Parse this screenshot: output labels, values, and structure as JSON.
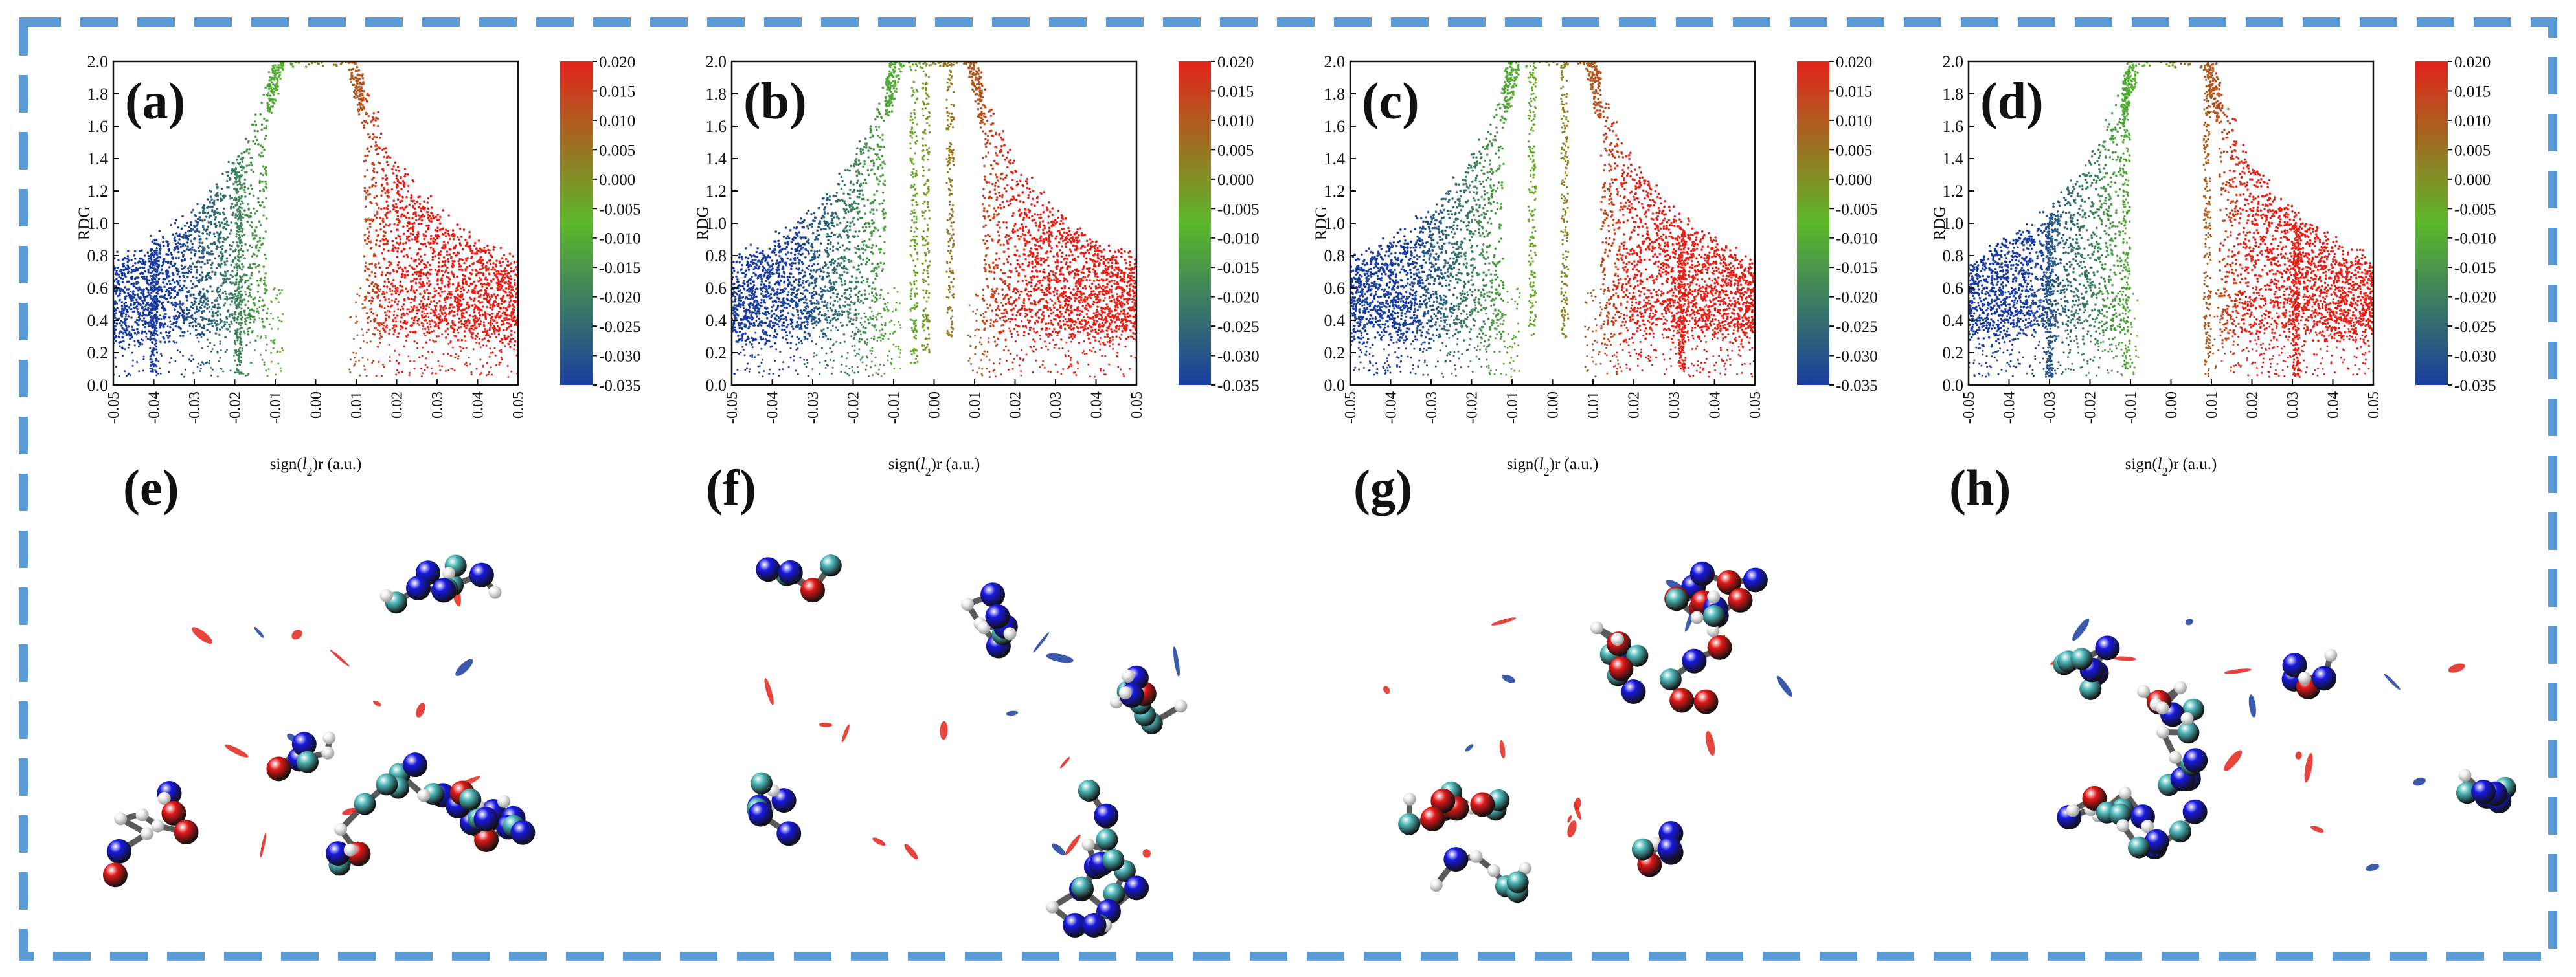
{
  "colors": {
    "border": "#5b9bd5",
    "nci_blue": "#1a3d9e",
    "nci_green": "#5cb82a",
    "nci_red": "#e2231a",
    "atom_c": "#4fb8b8",
    "atom_n": "#1818e0",
    "atom_o": "#e01818",
    "atom_h": "#f2f2f2"
  },
  "panels_3d": [
    {
      "label": "(e)",
      "icon": "molecule-nci-isosurface"
    },
    {
      "label": "(f)",
      "icon": "molecule-nci-isosurface"
    },
    {
      "label": "(g)",
      "icon": "molecule-nci-isosurface"
    },
    {
      "label": "(h)",
      "icon": "molecule-nci-isosurface"
    }
  ],
  "chart_data": [
    {
      "type": "scatter",
      "panel_label": "(a)",
      "xlabel": "sign(l2)r (a.u.)",
      "xlabel_prefix": "sign(",
      "xlabel_l": "l",
      "xlabel_sub": "2",
      "xlabel_suffix": ")r (a.u.)",
      "ylabel": "RDG",
      "xlim": [
        -0.05,
        0.05
      ],
      "ylim": [
        0.0,
        2.0
      ],
      "xticks": [
        "-0.05",
        "-0.04",
        "-0.03",
        "-0.02",
        "-0.01",
        "0.00",
        "0.01",
        "0.02",
        "0.03",
        "0.04",
        "0.05"
      ],
      "yticks": [
        "0.0",
        "0.2",
        "0.4",
        "0.6",
        "0.8",
        "1.0",
        "1.2",
        "1.4",
        "1.6",
        "1.8",
        "2.0"
      ],
      "colorbar_range": [
        -0.035,
        0.02
      ],
      "colorbar_ticks": [
        "0.020",
        "0.015",
        "0.010",
        "0.005",
        "0.000",
        "-0.005",
        "-0.010",
        "-0.015",
        "-0.020",
        "-0.025",
        "-0.030",
        "-0.035"
      ],
      "spikes": [
        {
          "x": -0.019,
          "min_rdg": 0.06
        },
        {
          "x": -0.04,
          "min_rdg": 0.08
        }
      ]
    },
    {
      "type": "scatter",
      "panel_label": "(b)",
      "xlabel": "sign(l2)r (a.u.)",
      "xlabel_prefix": "sign(",
      "xlabel_l": "l",
      "xlabel_sub": "2",
      "xlabel_suffix": ")r (a.u.)",
      "ylabel": "RDG",
      "xlim": [
        -0.05,
        0.05
      ],
      "ylim": [
        0.0,
        2.0
      ],
      "xticks": [
        "-0.05",
        "-0.04",
        "-0.03",
        "-0.02",
        "-0.01",
        "0.00",
        "0.01",
        "0.02",
        "0.03",
        "0.04",
        "0.05"
      ],
      "yticks": [
        "0.0",
        "0.2",
        "0.4",
        "0.6",
        "0.8",
        "1.0",
        "1.2",
        "1.4",
        "1.6",
        "1.8",
        "2.0"
      ],
      "colorbar_range": [
        -0.035,
        0.02
      ],
      "colorbar_ticks": [
        "0.020",
        "0.015",
        "0.010",
        "0.005",
        "0.000",
        "-0.005",
        "-0.010",
        "-0.015",
        "-0.020",
        "-0.025",
        "-0.030",
        "-0.035"
      ],
      "spikes": [
        {
          "x": -0.005,
          "min_rdg": 0.12
        },
        {
          "x": -0.002,
          "min_rdg": 0.2
        },
        {
          "x": 0.004,
          "min_rdg": 0.3
        }
      ]
    },
    {
      "type": "scatter",
      "panel_label": "(c)",
      "xlabel": "sign(l2)r (a.u.)",
      "xlabel_prefix": "sign(",
      "xlabel_l": "l",
      "xlabel_sub": "2",
      "xlabel_suffix": ")r (a.u.)",
      "ylabel": "RDG",
      "xlim": [
        -0.05,
        0.05
      ],
      "ylim": [
        0.0,
        2.0
      ],
      "xticks": [
        "-0.05",
        "-0.04",
        "-0.03",
        "-0.02",
        "-0.01",
        "0.00",
        "0.01",
        "0.02",
        "0.03",
        "0.04",
        "0.05"
      ],
      "yticks": [
        "0.0",
        "0.2",
        "0.4",
        "0.6",
        "0.8",
        "1.0",
        "1.2",
        "1.4",
        "1.6",
        "1.8",
        "2.0"
      ],
      "colorbar_range": [
        -0.035,
        0.02
      ],
      "colorbar_ticks": [
        "0.020",
        "0.015",
        "0.010",
        "0.005",
        "0.000",
        "-0.005",
        "-0.010",
        "-0.015",
        "-0.020",
        "-0.025",
        "-0.030",
        "-0.035"
      ],
      "spikes": [
        {
          "x": -0.005,
          "min_rdg": 0.3
        },
        {
          "x": 0.003,
          "min_rdg": 0.28
        },
        {
          "x": 0.032,
          "min_rdg": 0.1
        }
      ]
    },
    {
      "type": "scatter",
      "panel_label": "(d)",
      "xlabel": "sign(l2)r (a.u.)",
      "xlabel_prefix": "sign(",
      "xlabel_l": "l",
      "xlabel_sub": "2",
      "xlabel_suffix": ")r (a.u.)",
      "ylabel": "RDG",
      "xlim": [
        -0.05,
        0.05
      ],
      "ylim": [
        0.0,
        2.0
      ],
      "xticks": [
        "-0.05",
        "-0.04",
        "-0.03",
        "-0.02",
        "-0.01",
        "0.00",
        "0.01",
        "0.02",
        "0.03",
        "0.04",
        "0.05"
      ],
      "yticks": [
        "0.0",
        "0.2",
        "0.4",
        "0.6",
        "0.8",
        "1.0",
        "1.2",
        "1.4",
        "1.6",
        "1.8",
        "2.0"
      ],
      "colorbar_range": [
        -0.035,
        0.02
      ],
      "colorbar_ticks": [
        "0.020",
        "0.015",
        "0.010",
        "0.005",
        "0.000",
        "-0.005",
        "-0.010",
        "-0.015",
        "-0.020",
        "-0.025",
        "-0.030",
        "-0.035"
      ],
      "spikes": [
        {
          "x": -0.03,
          "min_rdg": 0.05
        },
        {
          "x": -0.011,
          "min_rdg": 0.1
        },
        {
          "x": 0.009,
          "min_rdg": 0.12
        },
        {
          "x": 0.031,
          "min_rdg": 0.05
        }
      ]
    }
  ]
}
